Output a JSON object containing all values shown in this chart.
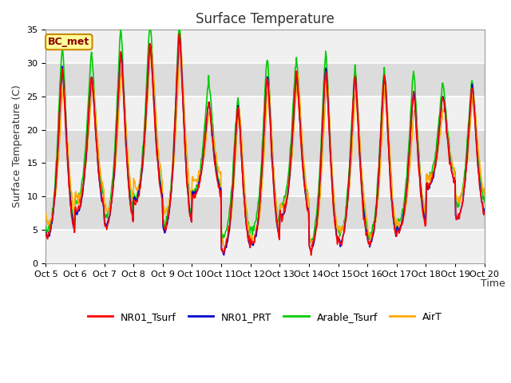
{
  "title": "Surface Temperature",
  "ylabel": "Surface Temperature (C)",
  "xlabel": "Time",
  "annotation": "BC_met",
  "ylim": [
    0,
    35
  ],
  "series_colors": [
    "#ff0000",
    "#0000cc",
    "#00cc00",
    "#ffaa00"
  ],
  "series_labels": [
    "NR01_Tsurf",
    "NR01_PRT",
    "Arable_Tsurf",
    "AirT"
  ],
  "xtick_labels": [
    "Oct 5",
    "Oct 6",
    "Oct 7",
    "Oct 8",
    "Oct 9",
    "Oct 10",
    "Oct 11",
    "Oct 12",
    "Oct 13",
    "Oct 14",
    "Oct 15",
    "Oct 16",
    "Oct 17",
    "Oct 18",
    "Oct 19",
    "Oct 20"
  ],
  "bg_color": "#dcdcdc",
  "white_band_color": "#f0f0f0",
  "grid_color": "#ffffff",
  "yticks": [
    0,
    5,
    10,
    15,
    20,
    25,
    30,
    35
  ],
  "figsize": [
    6.4,
    4.8
  ],
  "dpi": 100,
  "title_fontsize": 12,
  "axis_label_fontsize": 9,
  "tick_fontsize": 8,
  "legend_fontsize": 9,
  "annotation_fontsize": 9
}
